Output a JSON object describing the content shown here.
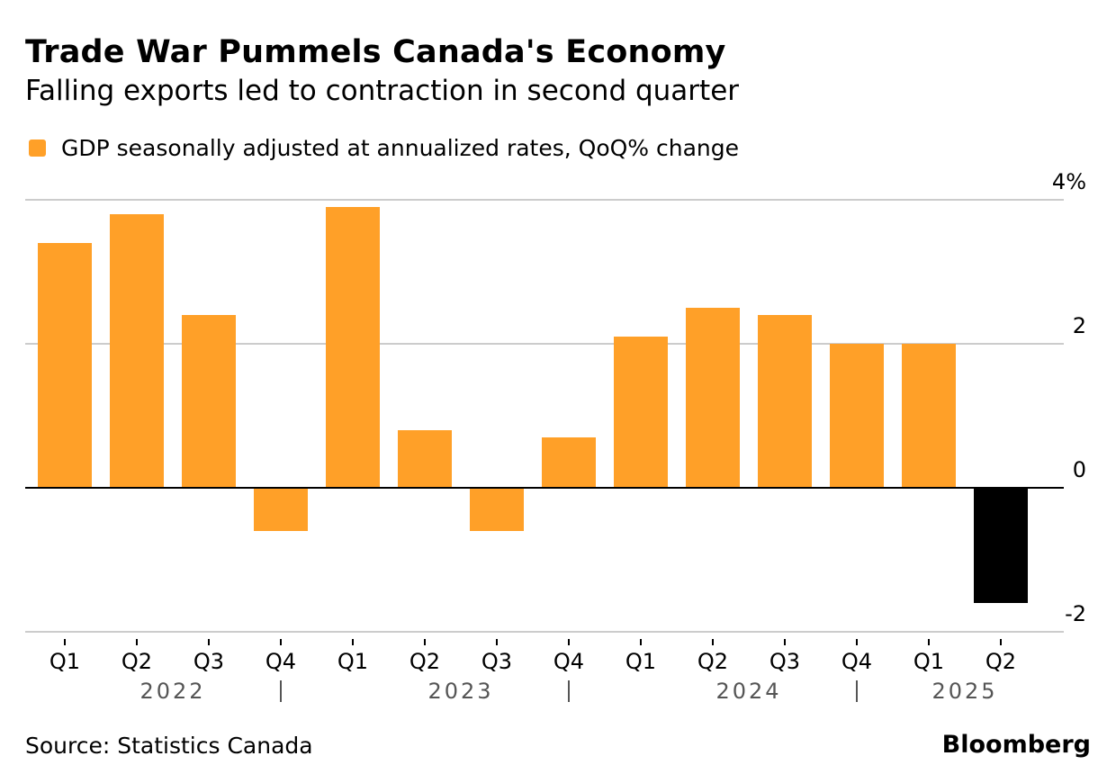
{
  "header": {
    "title": "Trade War Pummels Canada's Economy",
    "subtitle": "Falling exports led to contraction in second quarter"
  },
  "legend": {
    "label": "GDP seasonally adjusted at annualized rates, QoQ% change",
    "color": "#FFA028"
  },
  "footer": {
    "source": "Source: Statistics Canada",
    "brand": "Bloomberg"
  },
  "colors": {
    "positive_bar": "#FFA028",
    "highlight_bar": "#000000",
    "gridline": "#cccccc",
    "zero_line": "#000000",
    "year_text": "#555555"
  },
  "chart_data": {
    "type": "bar",
    "title": "Trade War Pummels Canada's Economy",
    "subtitle": "Falling exports led to contraction in second quarter",
    "xlabel": "",
    "ylabel": "",
    "ylim": [
      -2,
      4
    ],
    "yticks": [
      4,
      2,
      0,
      -2
    ],
    "ytick_labels": [
      "4%",
      "2",
      "0",
      "-2"
    ],
    "grid": true,
    "y_axis_side": "right",
    "legend_position": "top-left",
    "categories": [
      "Q1",
      "Q2",
      "Q3",
      "Q4",
      "Q1",
      "Q2",
      "Q3",
      "Q4",
      "Q1",
      "Q2",
      "Q3",
      "Q4",
      "Q1",
      "Q2"
    ],
    "years": [
      {
        "label": "2022",
        "start": 0,
        "end": 3
      },
      {
        "label": "2023",
        "start": 4,
        "end": 7
      },
      {
        "label": "2024",
        "start": 8,
        "end": 11
      },
      {
        "label": "2025",
        "start": 12,
        "end": 13
      }
    ],
    "series": [
      {
        "name": "GDP seasonally adjusted at annualized rates, QoQ% change",
        "values": [
          3.4,
          3.8,
          2.4,
          -0.6,
          3.9,
          0.8,
          -0.6,
          0.7,
          2.1,
          2.5,
          2.4,
          2.0,
          2.0,
          -1.6
        ],
        "highlight_index": 13
      }
    ]
  }
}
